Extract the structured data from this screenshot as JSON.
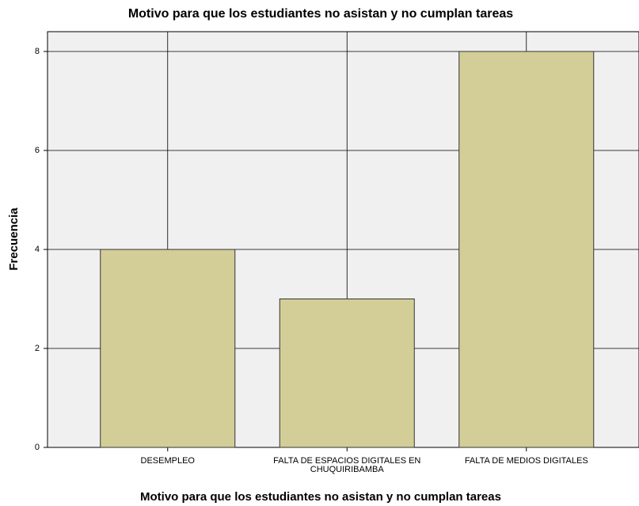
{
  "chart_data": {
    "type": "bar",
    "title": "Motivo para que los estudiantes no asistan y no cumplan tareas",
    "x_label": "Motivo para que los estudiantes no asistan y no cumplan tareas",
    "y_label": "Frecuencia",
    "categories": [
      "DESEMPLEO",
      "FALTA DE ESPACIOS DIGITALES EN CHUQUIRIBAMBA",
      "FALTA DE MEDIOS DIGITALES"
    ],
    "values": [
      4,
      3,
      8
    ],
    "color": "#d3ce97",
    "ylim": [
      0,
      8.4
    ],
    "yticks": [
      0,
      2,
      4,
      6,
      8
    ],
    "grid": true
  }
}
